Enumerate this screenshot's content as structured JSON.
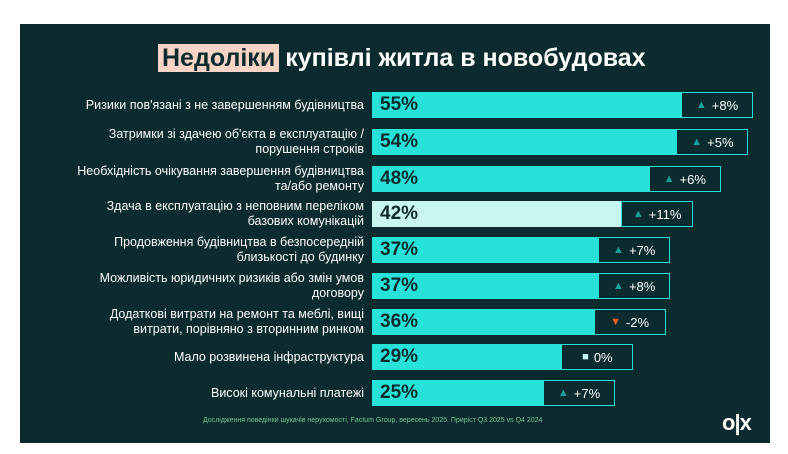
{
  "title": {
    "highlight": "Недоліки",
    "rest": "купівлі житла в новобудовах"
  },
  "chart_data": {
    "type": "bar",
    "orientation": "horizontal",
    "categories": [
      "Ризики пов'язані з не завершенням будівництва",
      "Затримки зі здачею об'єкта в експлуатацію / порушення строків",
      "Необхідність очікування завершення будівництва та/або ремонту",
      "Здача в експлуатацію з неповним переліком базових комунікацій",
      "Продовження будівництва в безпосередній близькості до будинку",
      "Можливість юридичних ризиків або змін умов договору",
      "Додаткові витрати на ремонт та меблі, вищі витрати, порівняно з вторинним ринком",
      "Мало розвинена інфраструктура",
      "Високі комунальні платежі"
    ],
    "values": [
      55,
      54,
      48,
      42,
      37,
      37,
      36,
      29,
      25
    ],
    "value_labels": [
      "55%",
      "54%",
      "48%",
      "42%",
      "37%",
      "37%",
      "36%",
      "29%",
      "25%"
    ],
    "changes": [
      "+8%",
      "+5%",
      "+6%",
      "+11%",
      "+7%",
      "+8%",
      "-2%",
      "0%",
      "+7%"
    ],
    "change_direction": [
      "up",
      "up",
      "up",
      "up",
      "up",
      "up",
      "down",
      "flat",
      "up"
    ],
    "highlighted_index": 3,
    "colors": {
      "bar": "#27e2d8",
      "highlight_bar": "#c9f5f0",
      "up": "#1aa39b",
      "down": "#f05a2a",
      "flat": "#c9f5f0",
      "background": "#0c2b2e"
    }
  },
  "footer": "Дослідження поведінки шукачів нерухомості, Factum Group, вересень 2025. Приріст Q3 2025 vs Q4 2024",
  "logo": "OLX"
}
